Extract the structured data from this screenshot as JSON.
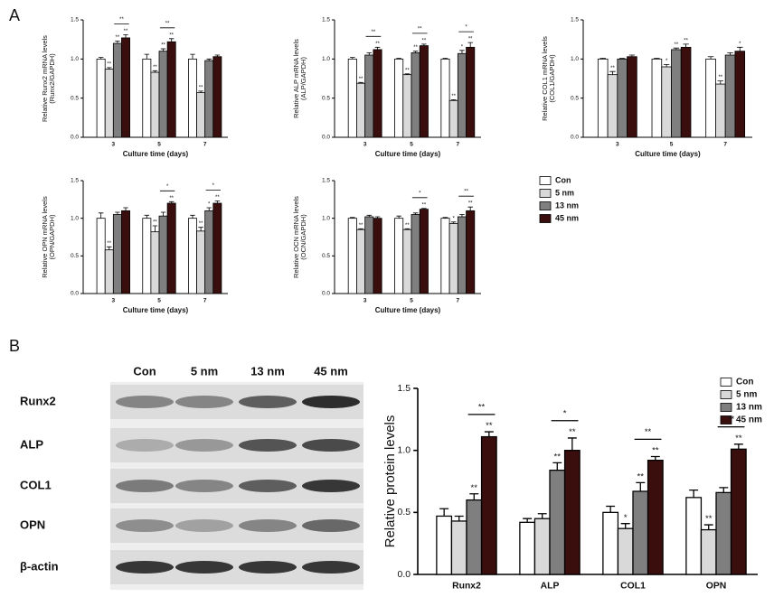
{
  "panel_labels": [
    "A",
    "B"
  ],
  "legend": {
    "names": [
      "Con",
      "5 nm",
      "13 nm",
      "45 nm"
    ],
    "colors": [
      "#ffffff",
      "#d9d9d9",
      "#7f7f7f",
      "#3b0e0e"
    ]
  },
  "blot": {
    "lanes": [
      "Con",
      "5 nm",
      "13 nm",
      "45 nm"
    ],
    "rows": [
      "Runx2",
      "ALP",
      "COL1",
      "OPN",
      "β-actin"
    ]
  },
  "chart_data": [
    {
      "type": "bar",
      "ylabel": [
        "Relative Runx2 mRNA levels",
        "(Runx2/GAPDH)"
      ],
      "xlabel": "Culture time (days)",
      "categories": [
        "3",
        "5",
        "7"
      ],
      "ylim": [
        0,
        1.5
      ],
      "yticks": [
        {
          "value": 0,
          "label": "0.0"
        },
        0.5,
        {
          "value": 1,
          "label": "1.0"
        },
        1.5
      ],
      "series": [
        {
          "values": [
            1.0,
            1.0,
            1.0
          ],
          "errors": [
            0.02,
            0.06,
            0.06
          ]
        },
        {
          "values": [
            0.87,
            0.83,
            0.57
          ],
          "errors": [
            0.02,
            0.02,
            0.02
          ],
          "sig": [
            "**",
            "**",
            "**"
          ]
        },
        {
          "values": [
            1.2,
            1.1,
            0.98
          ],
          "errors": [
            0.03,
            0.03,
            0.02
          ],
          "sig": [
            "**",
            "**",
            null
          ]
        },
        {
          "values": [
            1.27,
            1.22,
            1.03
          ],
          "errors": [
            0.04,
            0.04,
            0.02
          ],
          "sig": [
            "**",
            "**",
            null
          ]
        }
      ],
      "brackets": [
        "**",
        "**",
        null
      ]
    },
    {
      "type": "bar",
      "ylabel": [
        "Relative ALP mRNA levels",
        "(ALP/GAPDH)"
      ],
      "xlabel": "Culture time (days)",
      "categories": [
        "3",
        "5",
        "7"
      ],
      "ylim": [
        0,
        1.5
      ],
      "yticks": [
        {
          "value": 0,
          "label": "0.0"
        },
        0.5,
        {
          "value": 1,
          "label": "1.0"
        },
        1.5
      ],
      "series": [
        {
          "values": [
            1.0,
            1.0,
            1.0
          ],
          "errors": [
            0.02,
            0.01,
            0.01
          ]
        },
        {
          "values": [
            0.69,
            0.8,
            0.47
          ],
          "errors": [
            0.01,
            0.01,
            0.01
          ],
          "sig": [
            "**",
            "**",
            "**"
          ]
        },
        {
          "values": [
            1.05,
            1.08,
            1.07
          ],
          "errors": [
            0.03,
            0.02,
            0.04
          ],
          "sig": [
            null,
            "**",
            "*"
          ]
        },
        {
          "values": [
            1.12,
            1.17,
            1.15
          ],
          "errors": [
            0.03,
            0.02,
            0.06
          ],
          "sig": [
            "**",
            "**",
            "**"
          ]
        }
      ],
      "brackets": [
        "**",
        "**",
        "*"
      ]
    },
    {
      "type": "bar",
      "ylabel": [
        "Relative COL1 mRNA levels",
        "(COL1/GAPDH)"
      ],
      "xlabel": "Culture time (days)",
      "categories": [
        "3",
        "5",
        "7"
      ],
      "ylim": [
        0,
        1.5
      ],
      "yticks": [
        {
          "value": 0,
          "label": "0.0"
        },
        0.5,
        {
          "value": 1,
          "label": "1.0"
        },
        1.5
      ],
      "series": [
        {
          "values": [
            1.0,
            1.0,
            1.0
          ],
          "errors": [
            0.01,
            0.01,
            0.03
          ]
        },
        {
          "values": [
            0.8,
            0.9,
            0.68
          ],
          "errors": [
            0.04,
            0.03,
            0.04
          ],
          "sig": [
            "**",
            "*",
            "**"
          ]
        },
        {
          "values": [
            1.0,
            1.12,
            1.05
          ],
          "errors": [
            0.01,
            0.02,
            0.03
          ],
          "sig": [
            null,
            "**",
            null
          ]
        },
        {
          "values": [
            1.03,
            1.15,
            1.1
          ],
          "errors": [
            0.02,
            0.04,
            0.05
          ],
          "sig": [
            null,
            "**",
            "*"
          ]
        }
      ]
    },
    {
      "type": "bar",
      "ylabel": [
        "Relative OPN mRNA levels",
        "(OPN/GAPDH)"
      ],
      "xlabel": "Culture time (days)",
      "categories": [
        "3",
        "5",
        "7"
      ],
      "ylim": [
        0,
        1.5
      ],
      "yticks": [
        {
          "value": 0,
          "label": "0.0"
        },
        0.5,
        {
          "value": 1,
          "label": "1.0"
        },
        1.5
      ],
      "series": [
        {
          "values": [
            1.0,
            1.0,
            1.0
          ],
          "errors": [
            0.07,
            0.04,
            0.04
          ]
        },
        {
          "values": [
            0.58,
            0.82,
            0.83
          ],
          "errors": [
            0.04,
            0.08,
            0.05
          ],
          "sig": [
            "**",
            "**",
            "**"
          ]
        },
        {
          "values": [
            1.05,
            1.03,
            1.1
          ],
          "errors": [
            0.03,
            0.05,
            0.04
          ],
          "sig": [
            null,
            null,
            "*"
          ]
        },
        {
          "values": [
            1.1,
            1.2,
            1.2
          ],
          "errors": [
            0.04,
            0.02,
            0.03
          ],
          "sig": [
            null,
            "**",
            "**"
          ]
        }
      ],
      "brackets": [
        null,
        "*",
        "*"
      ]
    },
    {
      "type": "bar",
      "ylabel": [
        "Relative OCN mRNA levels",
        "(OCN/GAPDH)"
      ],
      "xlabel": "Culture time (days)",
      "categories": [
        "3",
        "5",
        "7"
      ],
      "ylim": [
        0,
        1.5
      ],
      "yticks": [
        {
          "value": 0,
          "label": "0.0"
        },
        0.5,
        {
          "value": 1,
          "label": "1.0"
        },
        1.5
      ],
      "series": [
        {
          "values": [
            1.0,
            1.0,
            1.0
          ],
          "errors": [
            0.01,
            0.03,
            0.01
          ]
        },
        {
          "values": [
            0.85,
            0.85,
            0.93
          ],
          "errors": [
            0.01,
            0.01,
            0.02
          ],
          "sig": [
            "**",
            "**",
            "*"
          ]
        },
        {
          "values": [
            1.02,
            1.05,
            1.02
          ],
          "errors": [
            0.02,
            0.02,
            0.03
          ],
          "sig": [
            null,
            null,
            null
          ]
        },
        {
          "values": [
            1.0,
            1.12,
            1.1
          ],
          "errors": [
            0.02,
            0.01,
            0.05
          ],
          "sig": [
            null,
            "**",
            "**"
          ]
        }
      ],
      "brackets": [
        null,
        "*",
        "**"
      ]
    },
    {
      "type": "bar",
      "ylabel": [
        "Relative protein levels"
      ],
      "categories": [
        "Runx2",
        "ALP",
        "COL1",
        "OPN"
      ],
      "ylim": [
        0,
        1.5
      ],
      "yticks": [
        {
          "value": 0,
          "label": "0.0"
        },
        0.5,
        {
          "value": 1,
          "label": "1.0"
        },
        1.5
      ],
      "series": [
        {
          "values": [
            0.47,
            0.42,
            0.5,
            0.62
          ],
          "errors": [
            0.06,
            0.03,
            0.05,
            0.06
          ]
        },
        {
          "values": [
            0.43,
            0.45,
            0.37,
            0.36
          ],
          "errors": [
            0.04,
            0.04,
            0.04,
            0.04
          ],
          "sig": [
            null,
            null,
            "*",
            "**"
          ]
        },
        {
          "values": [
            0.6,
            0.84,
            0.67,
            0.66
          ],
          "errors": [
            0.05,
            0.06,
            0.07,
            0.04
          ],
          "sig": [
            "**",
            "**",
            "**",
            null
          ]
        },
        {
          "values": [
            1.11,
            1.0,
            0.92,
            1.01
          ],
          "errors": [
            0.04,
            0.1,
            0.03,
            0.04
          ],
          "sig": [
            "**",
            "**",
            "**",
            "**"
          ]
        }
      ],
      "brackets": [
        "**",
        "*",
        "**",
        "**"
      ]
    }
  ]
}
